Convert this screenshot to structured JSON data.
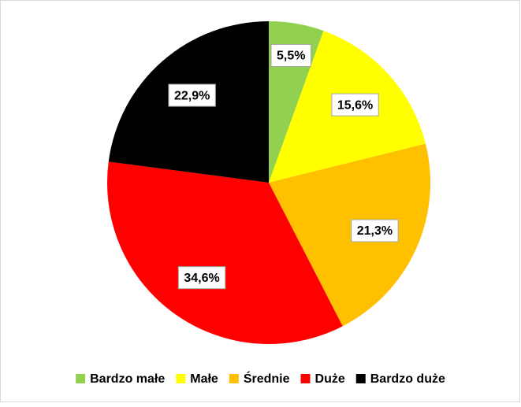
{
  "chart_data": {
    "type": "pie",
    "categories": [
      "Bardzo małe",
      "Małe",
      "Średnie",
      "Duże",
      "Bardzo duże"
    ],
    "values": [
      5.5,
      15.6,
      21.3,
      34.6,
      22.9
    ],
    "value_labels": [
      "5,5%",
      "15,6%",
      "21,3%",
      "34,6%",
      "22,9%"
    ],
    "colors": [
      "#92d050",
      "#ffff00",
      "#ffc000",
      "#ff0000",
      "#000000"
    ],
    "legend": "bottom"
  }
}
